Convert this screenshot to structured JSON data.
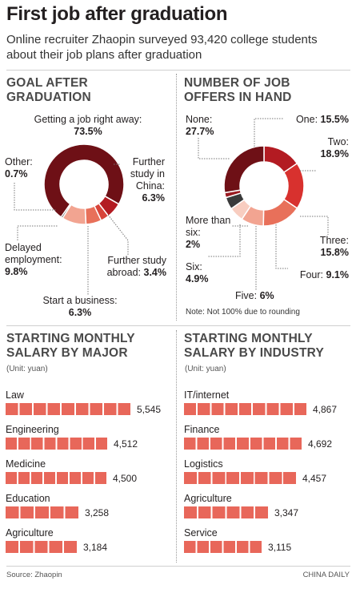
{
  "header": {
    "title": "First job after graduation",
    "subtitle": "Online recruiter Zhaopin surveyed 93,420 college students about their job plans after graduation"
  },
  "chart_data": [
    {
      "type": "pie",
      "title": "GOAL AFTER GRADUATION",
      "slices": [
        {
          "label": "Getting a job right away:",
          "value_label": "73.5%",
          "value": 73.5,
          "color": "#6e1016"
        },
        {
          "label": "Further study in China:",
          "value_label": "6.3%",
          "value": 6.3,
          "color": "#b31b22"
        },
        {
          "label": "Further study abroad:",
          "value_label": "3.4%",
          "value": 3.4,
          "color": "#d8443a"
        },
        {
          "label": "Start a business:",
          "value_label": "6.3%",
          "value": 6.3,
          "color": "#e8705a"
        },
        {
          "label": "Delayed employment:",
          "value_label": "9.8%",
          "value": 9.8,
          "color": "#f2a491"
        },
        {
          "label": "Other:",
          "value_label": "0.7%",
          "value": 0.7,
          "color": "#3a3a3a"
        }
      ]
    },
    {
      "type": "pie",
      "title": "NUMBER OF JOB OFFERS IN HAND",
      "note": "Note: Not 100% due to rounding",
      "slices": [
        {
          "label": "One:",
          "value_label": "15.5%",
          "value": 15.5,
          "color": "#b31b22"
        },
        {
          "label": "Two:",
          "value_label": "18.9%",
          "value": 18.9,
          "color": "#d8312e"
        },
        {
          "label": "Three:",
          "value_label": "15.8%",
          "value": 15.8,
          "color": "#e8705a"
        },
        {
          "label": "Four:",
          "value_label": "9.1%",
          "value": 9.1,
          "color": "#f2a491"
        },
        {
          "label": "Five:",
          "value_label": "6%",
          "value": 6,
          "color": "#f8cdc0"
        },
        {
          "label": "Six:",
          "value_label": "4.9%",
          "value": 4.9,
          "color": "#3a3a3a"
        },
        {
          "label": "More than six:",
          "value_label": "2%",
          "value": 2,
          "color": "#9a1a20"
        },
        {
          "label": "None:",
          "value_label": "27.7%",
          "value": 27.7,
          "color": "#6e1016"
        }
      ]
    },
    {
      "type": "bar",
      "title": "STARTING MONTHLY SALARY BY MAJOR",
      "unit": "(Unit: yuan)",
      "categories": [
        "Law",
        "Engineering",
        "Medicine",
        "Education",
        "Agriculture"
      ],
      "values": [
        5545,
        4512,
        4500,
        3258,
        3184
      ],
      "value_labels": [
        "5,545",
        "4,512",
        "4,500",
        "3,258",
        "3,184"
      ],
      "color": "#e8675a"
    },
    {
      "type": "bar",
      "title": "STARTING MONTHLY SALARY BY INDUSTRY",
      "unit": "(Unit: yuan)",
      "categories": [
        "IT/internet",
        "Finance",
        "Logistics",
        "Agriculture",
        "Service"
      ],
      "values": [
        4867,
        4692,
        4457,
        3347,
        3115
      ],
      "value_labels": [
        "4,867",
        "4,692",
        "4,457",
        "3,347",
        "3,115"
      ],
      "color": "#e8675a"
    }
  ],
  "footer": {
    "source": "Source: Zhaopin",
    "credit": "CHINA DAILY"
  }
}
